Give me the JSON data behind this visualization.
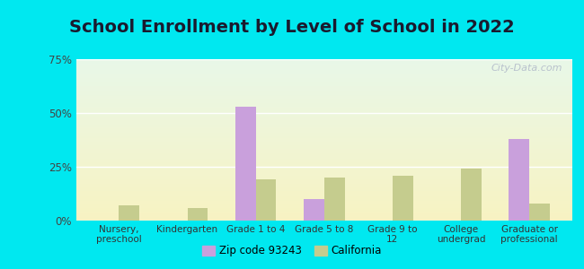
{
  "title": "School Enrollment by Level of School in 2022",
  "categories": [
    "Nursery,\npreschool",
    "Kindergarten",
    "Grade 1 to 4",
    "Grade 5 to 8",
    "Grade 9 to\n12",
    "College\nundergrad",
    "Graduate or\nprofessional"
  ],
  "zip_values": [
    0,
    0,
    53,
    10,
    0,
    0,
    38
  ],
  "ca_values": [
    7,
    6,
    19,
    20,
    21,
    24,
    8
  ],
  "zip_color": "#c9a0dc",
  "ca_color": "#c5cc8e",
  "ylim": [
    0,
    75
  ],
  "yticks": [
    0,
    25,
    50,
    75
  ],
  "ytick_labels": [
    "0%",
    "25%",
    "50%",
    "75%"
  ],
  "legend_zip": "Zip code 93243",
  "legend_ca": "California",
  "background_color": "#00e8f0",
  "title_fontsize": 14,
  "watermark": "City-Data.com"
}
